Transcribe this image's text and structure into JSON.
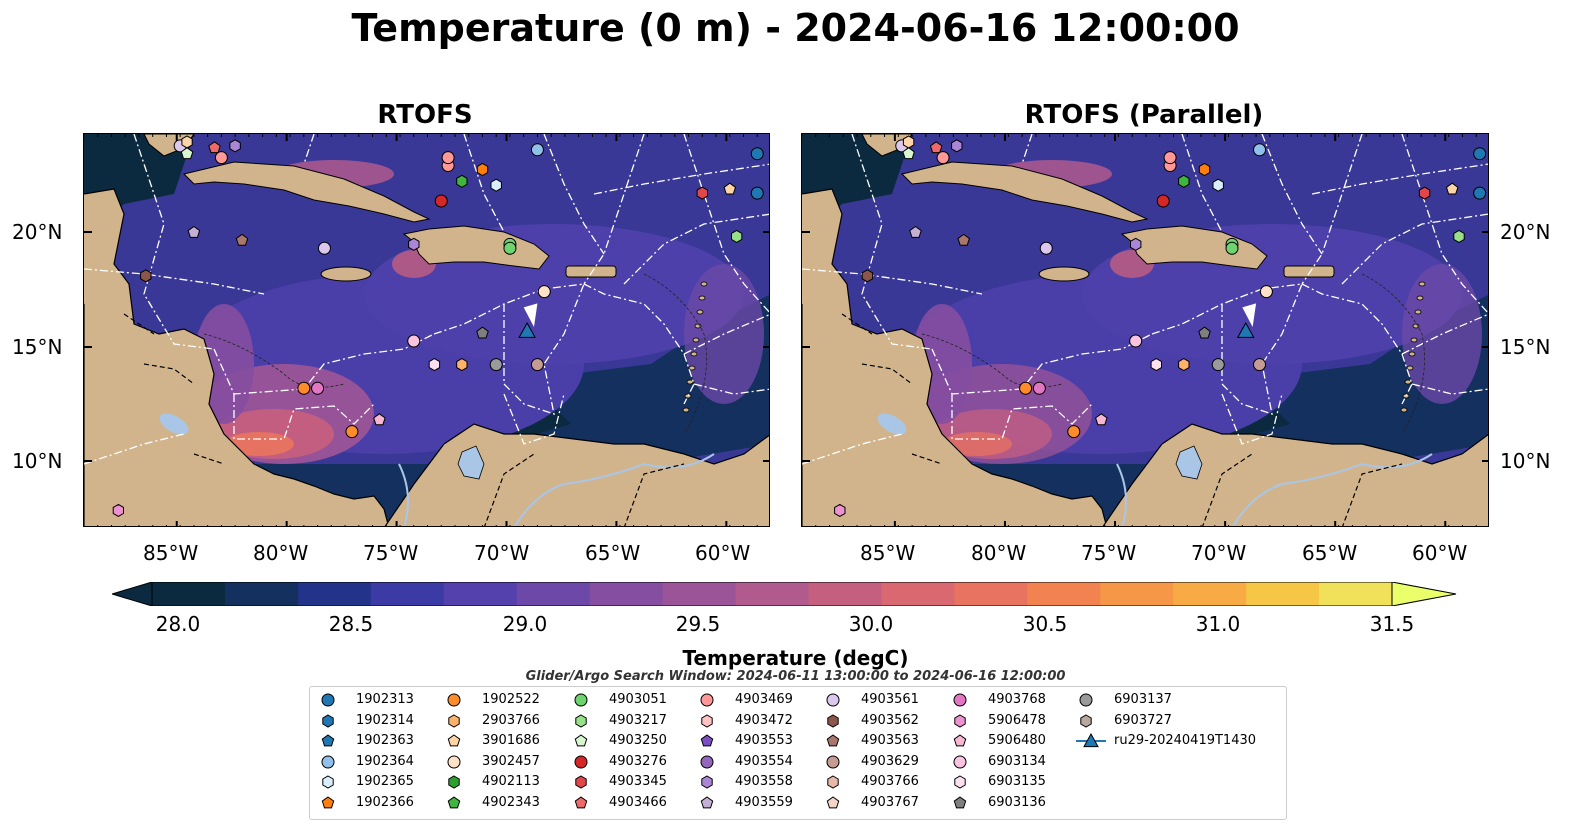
{
  "title": "Temperature (0 m) - 2024-06-16 12:00:00",
  "panels": [
    {
      "title": "RTOFS"
    },
    {
      "title": "RTOFS (Parallel)"
    }
  ],
  "lat_labels": [
    "20°N",
    "15°N",
    "10°N"
  ],
  "lon_labels": [
    "85°W",
    "80°W",
    "75°W",
    "70°W",
    "65°W",
    "60°W"
  ],
  "colorbar": {
    "label": "Temperature (degC)",
    "ticks": [
      "28.0",
      "28.5",
      "29.0",
      "29.5",
      "30.0",
      "30.5",
      "31.0",
      "31.5"
    ],
    "colors": [
      "#0b2a3f",
      "#13305e",
      "#24338a",
      "#3c3aa5",
      "#5541ad",
      "#6c48a8",
      "#854ea0",
      "#9b5497",
      "#b05a8e",
      "#c55f80",
      "#d96870",
      "#e87360",
      "#f28350",
      "#f69647",
      "#f8ab44",
      "#f6c646",
      "#f0e05a"
    ],
    "extend_max_color": "#eaff6a"
  },
  "search_window": "Glider/Argo Search Window: 2024-06-11 13:00:00 to 2024-06-16 12:00:00",
  "legend": [
    {
      "id": "1902313",
      "color": "#1f77b4",
      "marker": "circle"
    },
    {
      "id": "1902314",
      "color": "#1f77b4",
      "marker": "hexagon"
    },
    {
      "id": "1902363",
      "color": "#1f77b4",
      "marker": "pentagon"
    },
    {
      "id": "1902364",
      "color": "#8fc1ea",
      "marker": "circle"
    },
    {
      "id": "1902365",
      "color": "#d9eefc",
      "marker": "hexagon"
    },
    {
      "id": "1902366",
      "color": "#ff7f0e",
      "marker": "pentagon"
    },
    {
      "id": "1902522",
      "color": "#ff8c2a",
      "marker": "circle"
    },
    {
      "id": "2903766",
      "color": "#ffb26b",
      "marker": "hexagon"
    },
    {
      "id": "3901686",
      "color": "#ffd5a8",
      "marker": "pentagon"
    },
    {
      "id": "3902457",
      "color": "#ffe2c8",
      "marker": "circle"
    },
    {
      "id": "4902113",
      "color": "#2ca02c",
      "marker": "hexagon"
    },
    {
      "id": "4902343",
      "color": "#3fb63f",
      "marker": "pentagon"
    },
    {
      "id": "4903051",
      "color": "#6fd36f",
      "marker": "circle"
    },
    {
      "id": "4903217",
      "color": "#98df8a",
      "marker": "hexagon"
    },
    {
      "id": "4903250",
      "color": "#d8f7d0",
      "marker": "pentagon"
    },
    {
      "id": "4903276",
      "color": "#d62728",
      "marker": "circle"
    },
    {
      "id": "4903345",
      "color": "#e0474b",
      "marker": "hexagon"
    },
    {
      "id": "4903466",
      "color": "#ee6a6a",
      "marker": "pentagon"
    },
    {
      "id": "4903469",
      "color": "#ff9896",
      "marker": "circle"
    },
    {
      "id": "4903472",
      "color": "#ffc4c2",
      "marker": "hexagon"
    },
    {
      "id": "4903553",
      "color": "#7b4fc4",
      "marker": "pentagon"
    },
    {
      "id": "4903554",
      "color": "#9467bd",
      "marker": "circle"
    },
    {
      "id": "4903558",
      "color": "#ab86d6",
      "marker": "hexagon"
    },
    {
      "id": "4903559",
      "color": "#c5b0d5",
      "marker": "pentagon"
    },
    {
      "id": "4903561",
      "color": "#dcc8ec",
      "marker": "circle"
    },
    {
      "id": "4903562",
      "color": "#8c564b",
      "marker": "hexagon"
    },
    {
      "id": "4903563",
      "color": "#a9776b",
      "marker": "pentagon"
    },
    {
      "id": "4903629",
      "color": "#c49c94",
      "marker": "circle"
    },
    {
      "id": "4903766",
      "color": "#e6b8a8",
      "marker": "hexagon"
    },
    {
      "id": "4903767",
      "color": "#f5d5c8",
      "marker": "pentagon"
    },
    {
      "id": "4903768",
      "color": "#e377c2",
      "marker": "circle"
    },
    {
      "id": "5906478",
      "color": "#ec92d1",
      "marker": "hexagon"
    },
    {
      "id": "5906480",
      "color": "#f7b6d2",
      "marker": "pentagon"
    },
    {
      "id": "6903134",
      "color": "#fbc3e0",
      "marker": "circle"
    },
    {
      "id": "6903135",
      "color": "#fde0ef",
      "marker": "hexagon"
    },
    {
      "id": "6903136",
      "color": "#7f7f7f",
      "marker": "pentagon"
    },
    {
      "id": "6903137",
      "color": "#9a9a9a",
      "marker": "circle"
    },
    {
      "id": "6903727",
      "color": "#b8a8a0",
      "marker": "hexagon"
    },
    {
      "id": "ru29-20240419T1430",
      "color": "#1f77b4",
      "marker": "triangle-line"
    }
  ],
  "colors": {
    "land": "#d2b48c",
    "ocean_dark": "#0b2a3f",
    "ocean_mid": "#3c3aa5",
    "ocean_warm": "#9b5497",
    "lakes_rivers": "#a9c6e6",
    "eez_lines": "#ffffff",
    "borders": "#000000"
  }
}
